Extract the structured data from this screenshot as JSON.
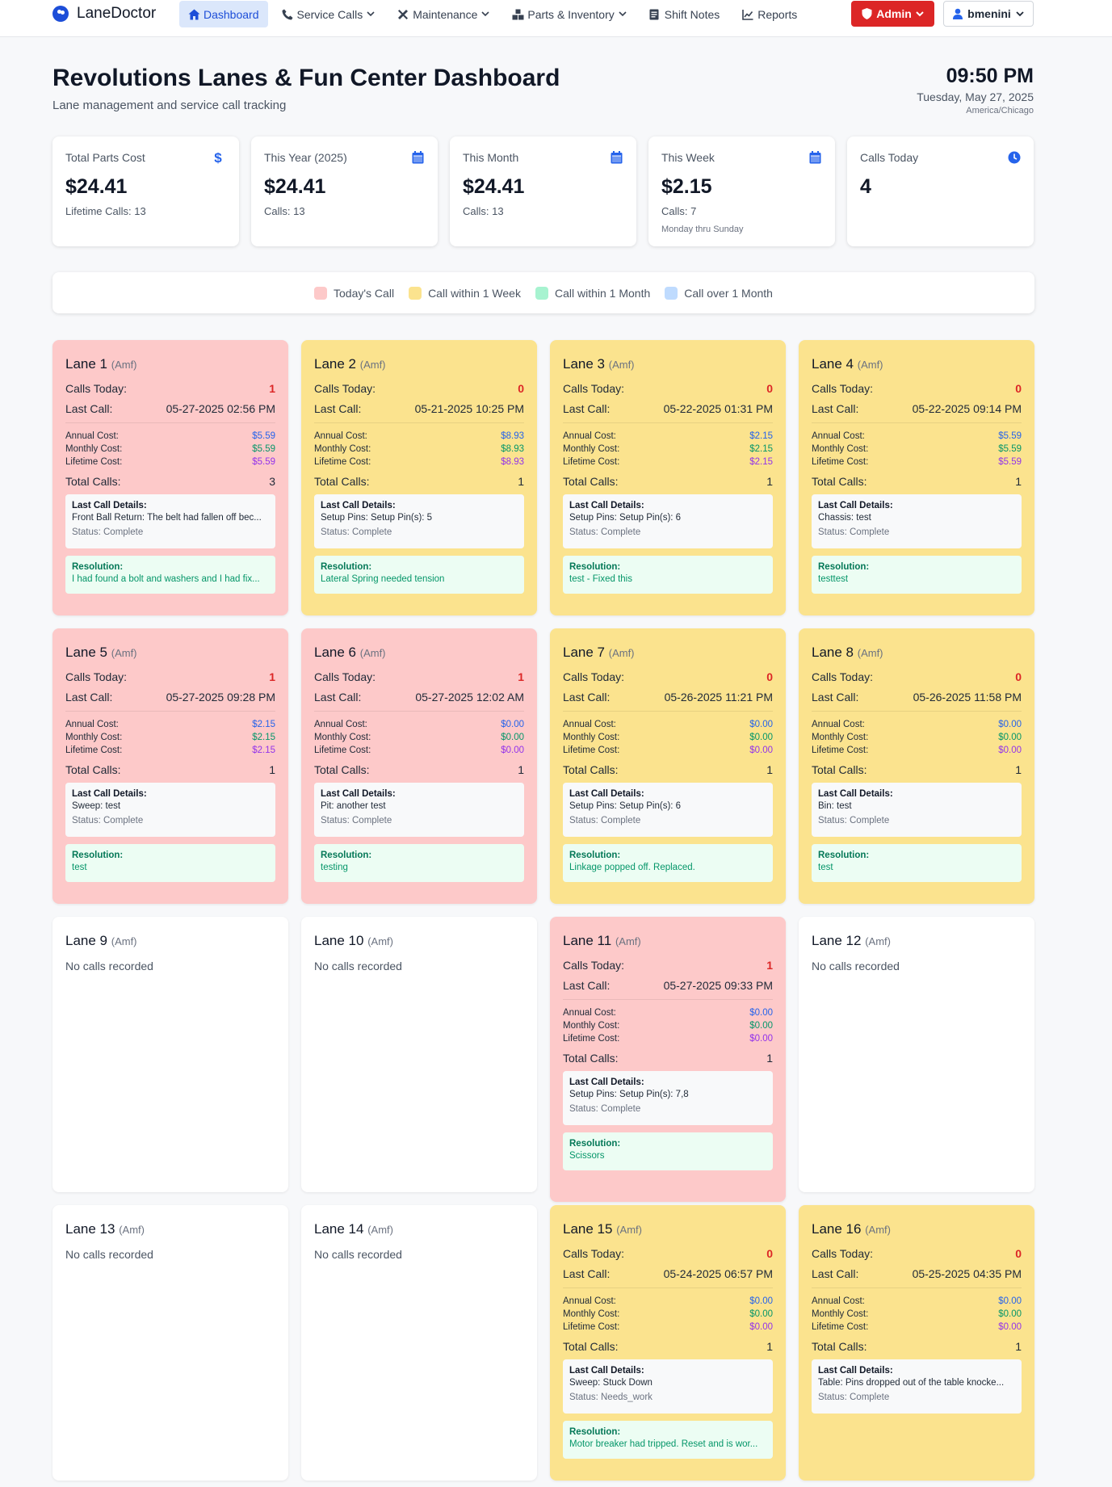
{
  "nav": {
    "brand": "LaneDoctor",
    "items": [
      {
        "label": "Dashboard",
        "icon": "home-icon",
        "active": true,
        "dropdown": false
      },
      {
        "label": "Service Calls",
        "icon": "phone-icon",
        "active": false,
        "dropdown": true
      },
      {
        "label": "Maintenance",
        "icon": "tools-icon",
        "active": false,
        "dropdown": true
      },
      {
        "label": "Parts & Inventory",
        "icon": "boxes-icon",
        "active": false,
        "dropdown": true
      },
      {
        "label": "Shift Notes",
        "icon": "clipboard-icon",
        "active": false,
        "dropdown": false
      },
      {
        "label": "Reports",
        "icon": "chart-icon",
        "active": false,
        "dropdown": false
      }
    ],
    "admin_label": "Admin",
    "user_label": "bmenini"
  },
  "header": {
    "title": "Revolutions Lanes & Fun Center Dashboard",
    "subtitle": "Lane management and service call tracking",
    "time": "09:50 PM",
    "date": "Tuesday, May 27, 2025",
    "timezone": "America/Chicago"
  },
  "stats": [
    {
      "label": "Total Parts Cost",
      "value": "$24.41",
      "sub": "Lifetime Calls: 13",
      "sub2": "",
      "icon": "dollar-icon"
    },
    {
      "label": "This Year (2025)",
      "value": "$24.41",
      "sub": "Calls: 13",
      "sub2": "",
      "icon": "calendar-icon"
    },
    {
      "label": "This Month",
      "value": "$24.41",
      "sub": "Calls: 13",
      "sub2": "",
      "icon": "calendar-icon"
    },
    {
      "label": "This Week",
      "value": "$2.15",
      "sub": "Calls: 7",
      "sub2": "Monday thru Sunday",
      "icon": "calendar-icon"
    },
    {
      "label": "Calls Today",
      "value": "4",
      "sub": "",
      "sub2": "",
      "icon": "clock-icon"
    }
  ],
  "legend": [
    {
      "label": "Today's Call",
      "color": "#fdc9c9"
    },
    {
      "label": "Call within 1 Week",
      "color": "#fbe38e"
    },
    {
      "label": "Call within 1 Month",
      "color": "#a7f3d0"
    },
    {
      "label": "Call over 1 Month",
      "color": "#bfdbfe"
    }
  ],
  "labels": {
    "calls_today": "Calls Today:",
    "last_call": "Last Call:",
    "annual_cost": "Annual Cost:",
    "monthly_cost": "Monthly Cost:",
    "lifetime_cost": "Lifetime Cost:",
    "total_calls": "Total Calls:",
    "last_call_details": "Last Call Details:",
    "resolution": "Resolution:",
    "no_calls": "No calls recorded"
  },
  "lanes": [
    {
      "name": "Lane 1",
      "make": "(Amf)",
      "status": "red",
      "calls_today": "1",
      "last_call": "05-27-2025 02:56 PM",
      "annual": "$5.59",
      "monthly": "$5.59",
      "lifetime": "$5.59",
      "total": "3",
      "detail": "Front Ball Return: The belt had fallen off bec...",
      "detail_status": "Status: Complete",
      "resolution": "I had found a bolt and washers and I had fix..."
    },
    {
      "name": "Lane 2",
      "make": "(Amf)",
      "status": "yellow",
      "calls_today": "0",
      "last_call": "05-21-2025 10:25 PM",
      "annual": "$8.93",
      "monthly": "$8.93",
      "lifetime": "$8.93",
      "total": "1",
      "detail": "Setup Pins: Setup Pin(s): 5",
      "detail_status": "Status: Complete",
      "resolution": "Lateral Spring needed tension"
    },
    {
      "name": "Lane 3",
      "make": "(Amf)",
      "status": "yellow",
      "calls_today": "0",
      "last_call": "05-22-2025 01:31 PM",
      "annual": "$2.15",
      "monthly": "$2.15",
      "lifetime": "$2.15",
      "total": "1",
      "detail": "Setup Pins: Setup Pin(s): 6",
      "detail_status": "Status: Complete",
      "resolution": "test - Fixed this"
    },
    {
      "name": "Lane 4",
      "make": "(Amf)",
      "status": "yellow",
      "calls_today": "0",
      "last_call": "05-22-2025 09:14 PM",
      "annual": "$5.59",
      "monthly": "$5.59",
      "lifetime": "$5.59",
      "total": "1",
      "detail": "Chassis: test",
      "detail_status": "Status: Complete",
      "resolution": "testtest"
    },
    {
      "name": "Lane 5",
      "make": "(Amf)",
      "status": "red",
      "calls_today": "1",
      "last_call": "05-27-2025 09:28 PM",
      "annual": "$2.15",
      "monthly": "$2.15",
      "lifetime": "$2.15",
      "total": "1",
      "detail": "Sweep: test",
      "detail_status": "Status: Complete",
      "resolution": "test"
    },
    {
      "name": "Lane 6",
      "make": "(Amf)",
      "status": "red",
      "calls_today": "1",
      "last_call": "05-27-2025 12:02 AM",
      "annual": "$0.00",
      "monthly": "$0.00",
      "lifetime": "$0.00",
      "total": "1",
      "detail": "Pit: another test",
      "detail_status": "Status: Complete",
      "resolution": "testing"
    },
    {
      "name": "Lane 7",
      "make": "(Amf)",
      "status": "yellow",
      "calls_today": "0",
      "last_call": "05-26-2025 11:21 PM",
      "annual": "$0.00",
      "monthly": "$0.00",
      "lifetime": "$0.00",
      "total": "1",
      "detail": "Setup Pins: Setup Pin(s): 6",
      "detail_status": "Status: Complete",
      "resolution": "Linkage popped off. Replaced."
    },
    {
      "name": "Lane 8",
      "make": "(Amf)",
      "status": "yellow",
      "calls_today": "0",
      "last_call": "05-26-2025 11:58 PM",
      "annual": "$0.00",
      "monthly": "$0.00",
      "lifetime": "$0.00",
      "total": "1",
      "detail": "Bin: test",
      "detail_status": "Status: Complete",
      "resolution": "test"
    },
    {
      "name": "Lane 9",
      "make": "(Amf)",
      "status": "white"
    },
    {
      "name": "Lane 10",
      "make": "(Amf)",
      "status": "white"
    },
    {
      "name": "Lane 11",
      "make": "(Amf)",
      "status": "red",
      "calls_today": "1",
      "last_call": "05-27-2025 09:33 PM",
      "annual": "$0.00",
      "monthly": "$0.00",
      "lifetime": "$0.00",
      "total": "1",
      "detail": "Setup Pins: Setup Pin(s): 7,8",
      "detail_status": "Status: Complete",
      "resolution": "Scissors"
    },
    {
      "name": "Lane 12",
      "make": "(Amf)",
      "status": "white"
    },
    {
      "name": "Lane 13",
      "make": "(Amf)",
      "status": "white"
    },
    {
      "name": "Lane 14",
      "make": "(Amf)",
      "status": "white"
    },
    {
      "name": "Lane 15",
      "make": "(Amf)",
      "status": "yellow",
      "calls_today": "0",
      "last_call": "05-24-2025 06:57 PM",
      "annual": "$0.00",
      "monthly": "$0.00",
      "lifetime": "$0.00",
      "total": "1",
      "detail": "Sweep: Stuck Down",
      "detail_status": "Status: Needs_work",
      "resolution": "Motor breaker had tripped. Reset and is wor..."
    },
    {
      "name": "Lane 16",
      "make": "(Amf)",
      "status": "yellow",
      "calls_today": "0",
      "last_call": "05-25-2025 04:35 PM",
      "annual": "$0.00",
      "monthly": "$0.00",
      "lifetime": "$0.00",
      "total": "1",
      "detail": "Table: Pins dropped out of the table knocke...",
      "detail_status": "Status: Complete",
      "resolution": ""
    }
  ]
}
